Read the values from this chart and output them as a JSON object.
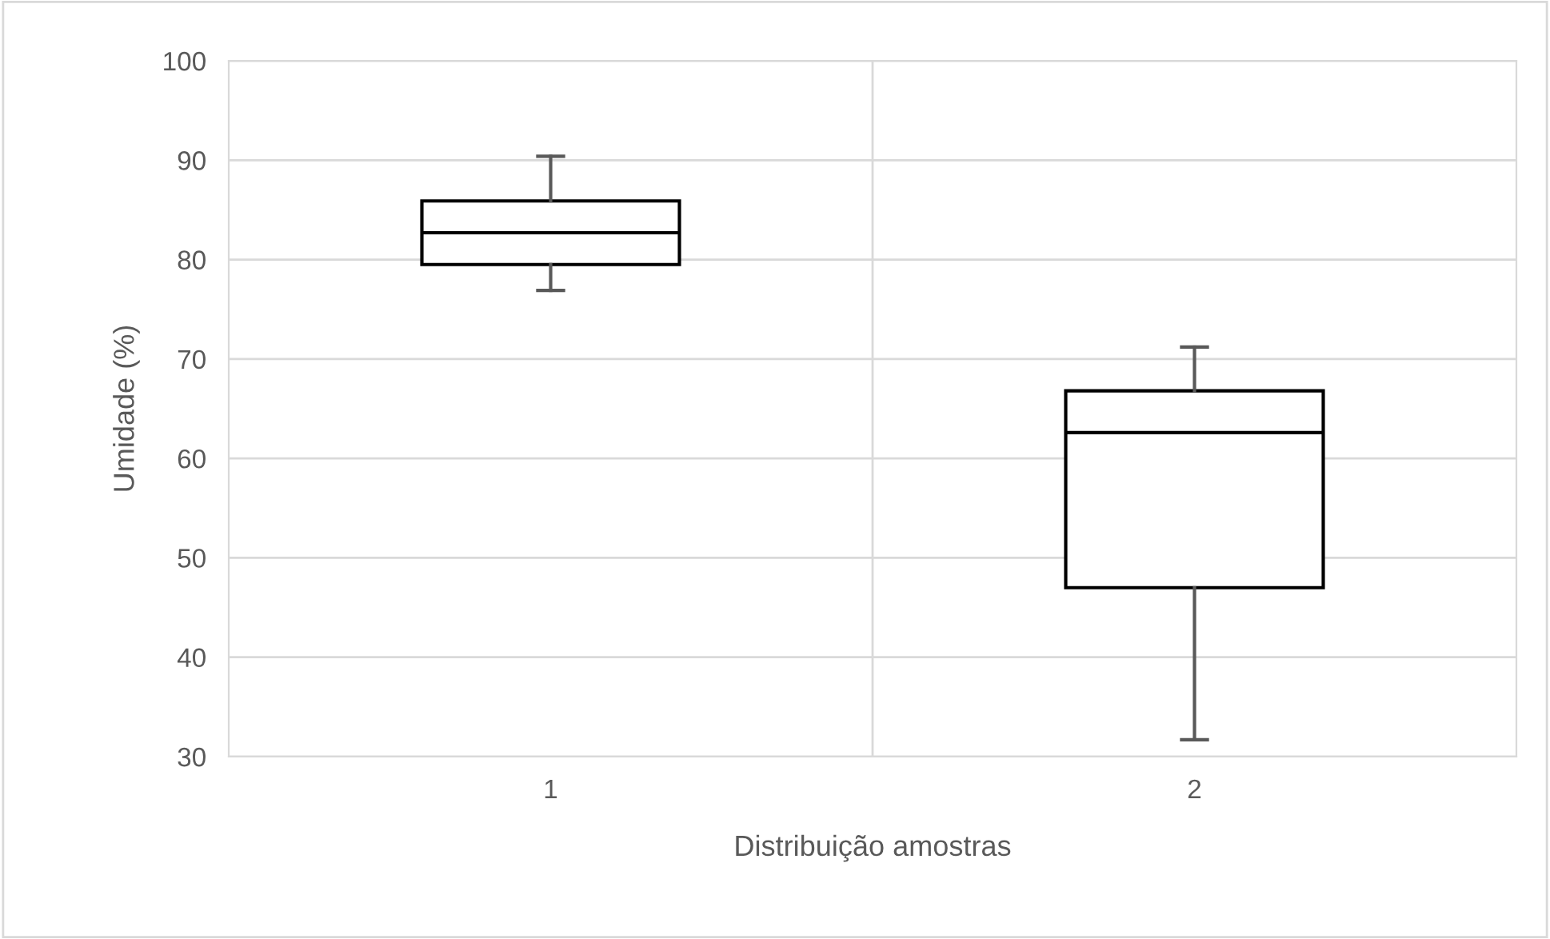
{
  "chart_data": {
    "type": "box",
    "xlabel": "Distribuição amostras",
    "ylabel": "Umidade (%)",
    "categories": [
      "1",
      "2"
    ],
    "boxes": [
      {
        "low": 76.9,
        "q1": 79.5,
        "median": 82.7,
        "q3": 85.9,
        "high": 90.4
      },
      {
        "low": 31.7,
        "q1": 47.0,
        "median": 62.6,
        "q3": 66.8,
        "high": 71.2
      }
    ],
    "ylim": [
      30,
      100
    ],
    "yticks": [
      30,
      40,
      50,
      60,
      70,
      80,
      90,
      100
    ],
    "grid": true
  }
}
